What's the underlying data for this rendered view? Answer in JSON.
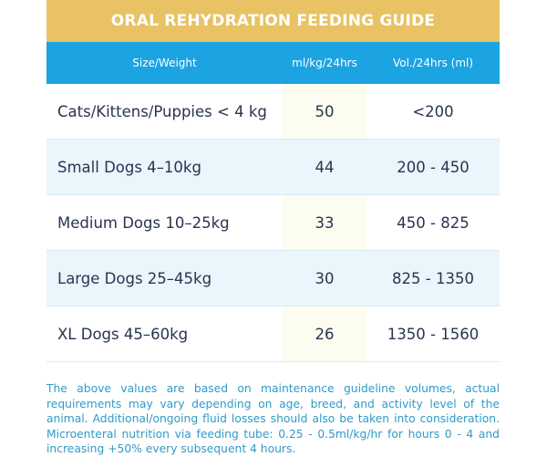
{
  "title": "ORAL REHYDRATION FEEDING GUIDE",
  "headers": [
    "Size/Weight",
    "ml/kg/24hrs",
    "Vol./24hrs (ml)"
  ],
  "rows": [
    {
      "size": "Cats/Kittens/Puppies < 4 kg",
      "rate": "50",
      "volume": "<200"
    },
    {
      "size": "Small Dogs 4–10kg",
      "rate": "44",
      "volume": "200 - 450"
    },
    {
      "size": "Medium Dogs 10–25kg",
      "rate": "33",
      "volume": "450 - 825"
    },
    {
      "size": "Large Dogs 25–45kg",
      "rate": "30",
      "volume": "825 - 1350"
    },
    {
      "size": "XL Dogs 45–60kg",
      "rate": "26",
      "volume": "1350 - 1560"
    }
  ],
  "note": "The above values are based on maintenance guideline volumes, actual requirements may vary depending on age, breed, and activity level of the animal. Additional/ongoing fluid losses should also be taken into consideration. Microenteral nutrition via feeding tube: 0.25 - 0.5ml/kg/hr for hours 0 - 4 and increasing +50% every subsequent 4 hours.",
  "colors": {
    "title_bg": "#e8c263",
    "header_bg": "#1ba3e2",
    "alt_row": "#eaf6fc",
    "note_text": "#2f9bc6"
  }
}
